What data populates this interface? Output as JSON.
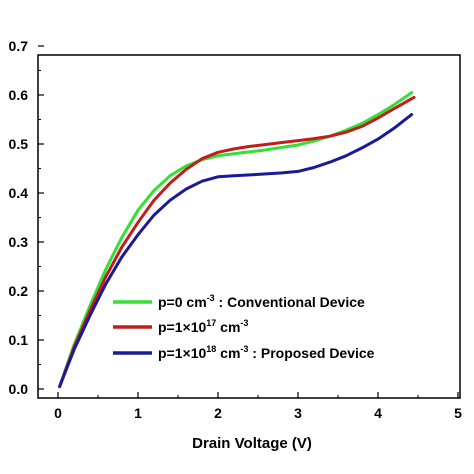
{
  "chart_data": {
    "type": "line",
    "title": "",
    "xlabel": "Drain Voltage (V)",
    "ylabel": "",
    "xlim": [
      0,
      5
    ],
    "ylim": [
      0,
      0.7
    ],
    "xticks": [
      "0",
      "1",
      "2",
      "3",
      "4",
      "5"
    ],
    "yticks": [
      "0.0",
      "0.1",
      "0.2",
      "0.3",
      "0.4",
      "0.5",
      "0.6",
      "0.7"
    ],
    "grid": false,
    "legend_position": "bottom-right",
    "series": [
      {
        "legend": {
          "pre": "p=0 cm",
          "sup": "-3",
          "post": " : Conventional Device"
        },
        "color": "#33e033",
        "x": [
          0.02,
          0.2,
          0.4,
          0.6,
          0.8,
          1.0,
          1.2,
          1.4,
          1.6,
          1.8,
          2.0,
          2.2,
          2.4,
          2.6,
          2.8,
          3.0,
          3.2,
          3.4,
          3.6,
          3.8,
          4.0,
          4.2,
          4.42
        ],
        "y": [
          0.005,
          0.09,
          0.17,
          0.245,
          0.31,
          0.365,
          0.405,
          0.435,
          0.455,
          0.468,
          0.476,
          0.48,
          0.484,
          0.488,
          0.493,
          0.498,
          0.506,
          0.516,
          0.528,
          0.542,
          0.56,
          0.58,
          0.605
        ]
      },
      {
        "legend": {
          "pre": "p=1×10",
          "sup": "17",
          "post": " cm",
          "sup2": "-3",
          "post2": ""
        },
        "color": "#c01e1e",
        "x": [
          0.02,
          0.2,
          0.4,
          0.6,
          0.8,
          1.0,
          1.2,
          1.4,
          1.6,
          1.8,
          2.0,
          2.2,
          2.4,
          2.6,
          2.8,
          3.0,
          3.2,
          3.4,
          3.6,
          3.8,
          4.0,
          4.2,
          4.45
        ],
        "y": [
          0.005,
          0.085,
          0.16,
          0.23,
          0.29,
          0.34,
          0.385,
          0.42,
          0.448,
          0.47,
          0.483,
          0.49,
          0.495,
          0.499,
          0.503,
          0.507,
          0.511,
          0.516,
          0.524,
          0.536,
          0.553,
          0.572,
          0.595
        ]
      },
      {
        "legend": {
          "pre": "p=1×10",
          "sup": "18",
          "post": " cm",
          "sup2": "-3",
          "post2": " : Proposed Device"
        },
        "color": "#1a1a99",
        "x": [
          0.02,
          0.2,
          0.4,
          0.6,
          0.8,
          1.0,
          1.2,
          1.4,
          1.6,
          1.8,
          2.0,
          2.2,
          2.4,
          2.6,
          2.8,
          3.0,
          3.2,
          3.4,
          3.6,
          3.8,
          4.0,
          4.2,
          4.42
        ],
        "y": [
          0.005,
          0.08,
          0.15,
          0.215,
          0.27,
          0.315,
          0.355,
          0.385,
          0.408,
          0.424,
          0.433,
          0.435,
          0.437,
          0.439,
          0.441,
          0.444,
          0.452,
          0.463,
          0.476,
          0.492,
          0.51,
          0.532,
          0.56
        ]
      }
    ]
  }
}
